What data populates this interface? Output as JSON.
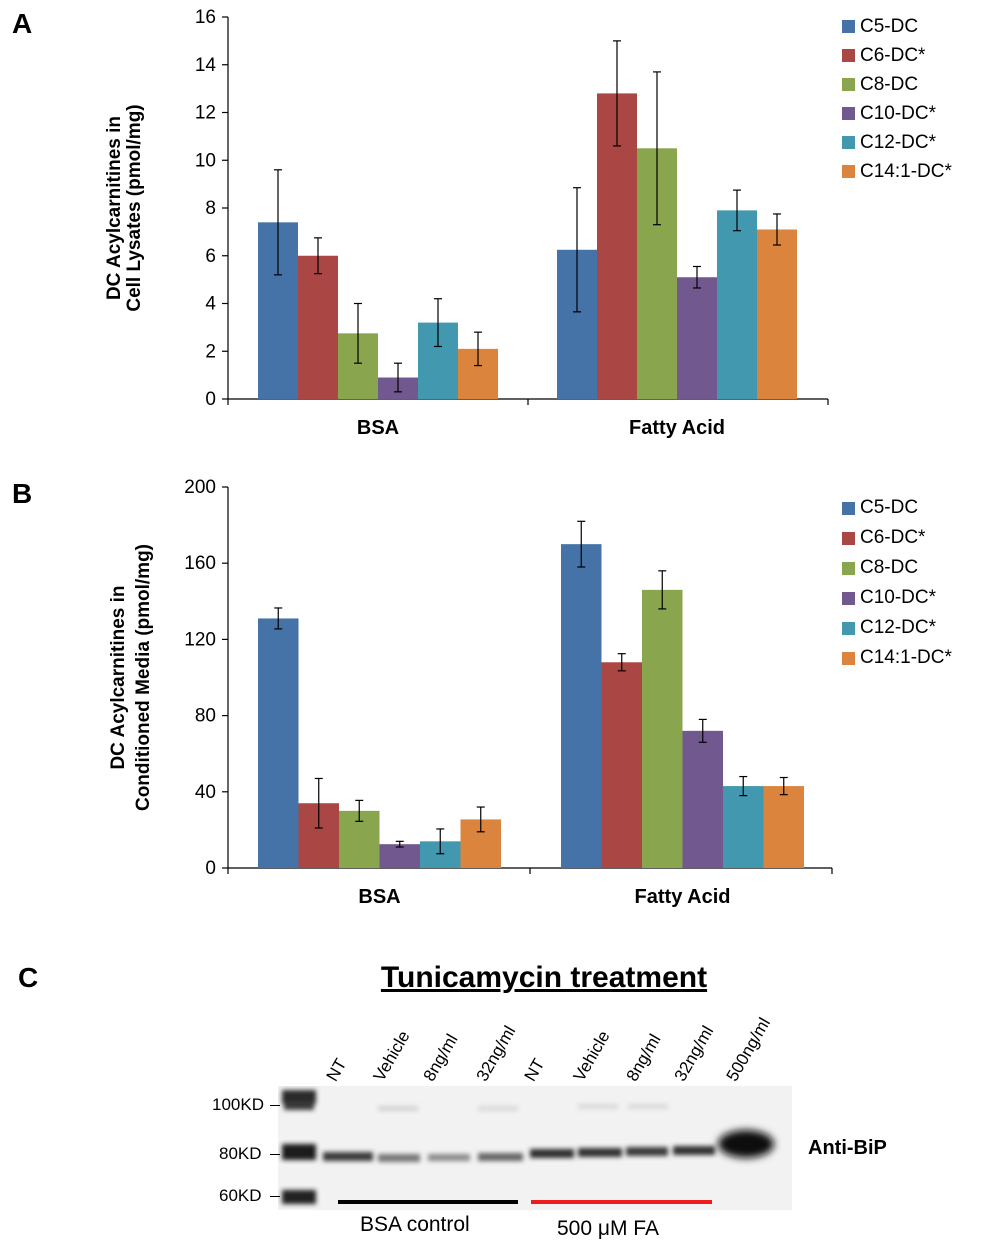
{
  "panels": {
    "a": "A",
    "b": "B",
    "c": "C"
  },
  "colors": {
    "C5-DC": "#4572a7",
    "C6-DC*": "#aa4643",
    "C8-DC": "#89a54e",
    "C10-DC*": "#71588f",
    "C12-DC*": "#4198af",
    "C14:1-DC*": "#db843d",
    "bsa_line": "#000000",
    "fa_line": "#ee1c1c"
  },
  "chart_data": [
    {
      "type": "bar",
      "panel": "A",
      "ylabel_line1": "DC Acylcarnitines in",
      "ylabel_line2": "Cell Lysates (pmol/mg)",
      "categories": [
        "BSA",
        "Fatty Acid"
      ],
      "ylim": [
        0,
        16
      ],
      "yticks": [
        0,
        2,
        4,
        6,
        8,
        10,
        12,
        14,
        16
      ],
      "legend_position": "right",
      "series": [
        {
          "name": "C5-DC",
          "values": [
            7.4,
            6.25
          ],
          "errors": [
            2.2,
            2.6
          ]
        },
        {
          "name": "C6-DC*",
          "values": [
            6.0,
            12.8
          ],
          "errors": [
            0.75,
            2.2
          ]
        },
        {
          "name": "C8-DC",
          "values": [
            2.75,
            10.5
          ],
          "errors": [
            1.25,
            3.2
          ]
        },
        {
          "name": "C10-DC*",
          "values": [
            0.9,
            5.1
          ],
          "errors": [
            0.6,
            0.45
          ]
        },
        {
          "name": "C12-DC*",
          "values": [
            3.2,
            7.9
          ],
          "errors": [
            1.0,
            0.85
          ]
        },
        {
          "name": "C14:1-DC*",
          "values": [
            2.1,
            7.1
          ],
          "errors": [
            0.7,
            0.65
          ]
        }
      ]
    },
    {
      "type": "bar",
      "panel": "B",
      "ylabel_line1": "DC Acylcarnitines in",
      "ylabel_line2": "Conditioned Media (pmol/mg)",
      "categories": [
        "BSA",
        "Fatty Acid"
      ],
      "ylim": [
        0,
        200
      ],
      "yticks": [
        0,
        40,
        80,
        120,
        160,
        200
      ],
      "legend_position": "right",
      "series": [
        {
          "name": "C5-DC",
          "values": [
            131,
            170
          ],
          "errors": [
            5.5,
            12
          ]
        },
        {
          "name": "C6-DC*",
          "values": [
            34,
            108
          ],
          "errors": [
            13,
            4.5
          ]
        },
        {
          "name": "C8-DC",
          "values": [
            30,
            146
          ],
          "errors": [
            5.5,
            10
          ]
        },
        {
          "name": "C10-DC*",
          "values": [
            12.5,
            72
          ],
          "errors": [
            1.5,
            6
          ]
        },
        {
          "name": "C12-DC*",
          "values": [
            14,
            43
          ],
          "errors": [
            6.5,
            5
          ]
        },
        {
          "name": "C14:1-DC*",
          "values": [
            25.5,
            43
          ],
          "errors": [
            6.5,
            4.5
          ]
        }
      ]
    }
  ],
  "blot": {
    "title": "Tunicamycin treatment",
    "lanes": [
      "NT",
      "Vehicle",
      "8ng/ml",
      "32ng/ml",
      "NT",
      "Vehicle",
      "8ng/ml",
      "32ng/ml",
      "500ng/ml"
    ],
    "markers": [
      "100KD",
      "80KD",
      "60KD"
    ],
    "antibody": "Anti-BiP",
    "group_bsa": "BSA control",
    "group_fa": "500 μM FA"
  }
}
